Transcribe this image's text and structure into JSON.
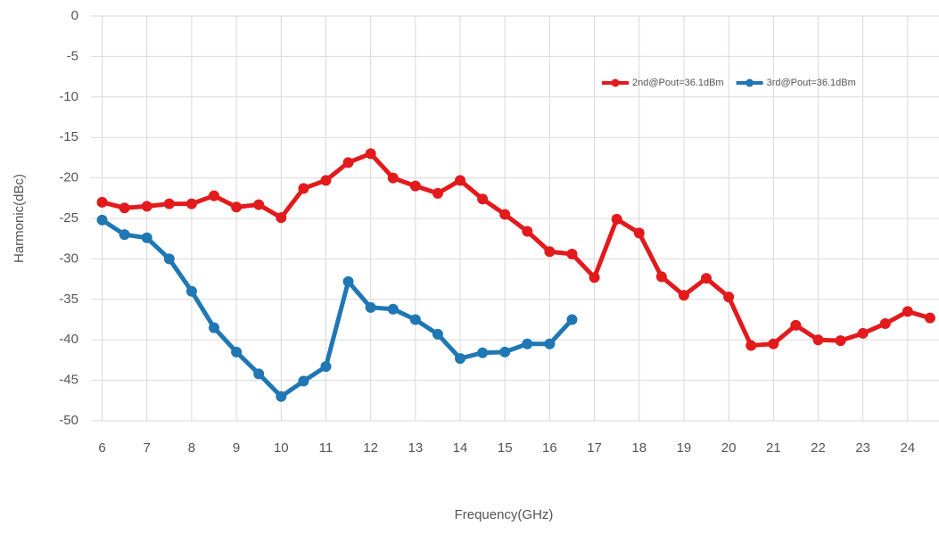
{
  "chart_data": {
    "type": "line",
    "xlabel": "Frequency(GHz)",
    "ylabel": "Harmonic(dBc)",
    "x": [
      6,
      6.5,
      7,
      7.5,
      8,
      8.5,
      9,
      9.5,
      10,
      10.5,
      11,
      11.5,
      12,
      12.5,
      13,
      13.5,
      14,
      14.5,
      15,
      15.5,
      16,
      16.5,
      17,
      17.5,
      18,
      18.5,
      19,
      19.5,
      20,
      20.5,
      21,
      21.5,
      22,
      22.5,
      23,
      23.5,
      24,
      24.5
    ],
    "series": [
      {
        "name": "2nd@Pout=36.1dBm",
        "color": "#e31a1c",
        "values": [
          -23,
          -23.7,
          -23.5,
          -23.2,
          -23.2,
          -22.2,
          -23.6,
          -23.3,
          -24.9,
          -21.3,
          -20.3,
          -18.1,
          -17,
          -20,
          -21,
          -21.9,
          -20.3,
          -22.6,
          -24.5,
          -26.6,
          -29.1,
          -29.4,
          -32.3,
          -25.1,
          -26.8,
          -32.2,
          -34.5,
          -32.4,
          -34.7,
          -40.7,
          -40.5,
          -38.2,
          -40,
          -40.1,
          -39.2,
          -38,
          -36.5,
          -37.3
        ]
      },
      {
        "name": "3rd@Pout=36.1dBm",
        "color": "#1f77b4",
        "values": [
          -25.2,
          -27,
          -27.4,
          -30,
          -34,
          -38.5,
          -41.5,
          -44.2,
          -47,
          -45.1,
          -43.3,
          -32.8,
          -36,
          -36.2,
          -37.5,
          -39.3,
          -42.3,
          -41.6,
          -41.5,
          -40.5,
          -40.5,
          -37.5,
          null,
          null,
          null,
          null,
          null,
          null,
          null,
          null,
          null,
          null,
          null,
          null,
          null,
          null,
          null,
          null
        ]
      }
    ],
    "xlim": [
      5.75,
      24.7
    ],
    "xticks": [
      6,
      7,
      8,
      9,
      10,
      11,
      12,
      13,
      14,
      15,
      16,
      17,
      18,
      19,
      20,
      21,
      22,
      23,
      24
    ],
    "ylim": [
      -50,
      0
    ],
    "yticks": [
      0,
      -5,
      -10,
      -15,
      -20,
      -25,
      -30,
      -35,
      -40,
      -45,
      -50
    ],
    "grid": true,
    "legend": "upper right"
  }
}
